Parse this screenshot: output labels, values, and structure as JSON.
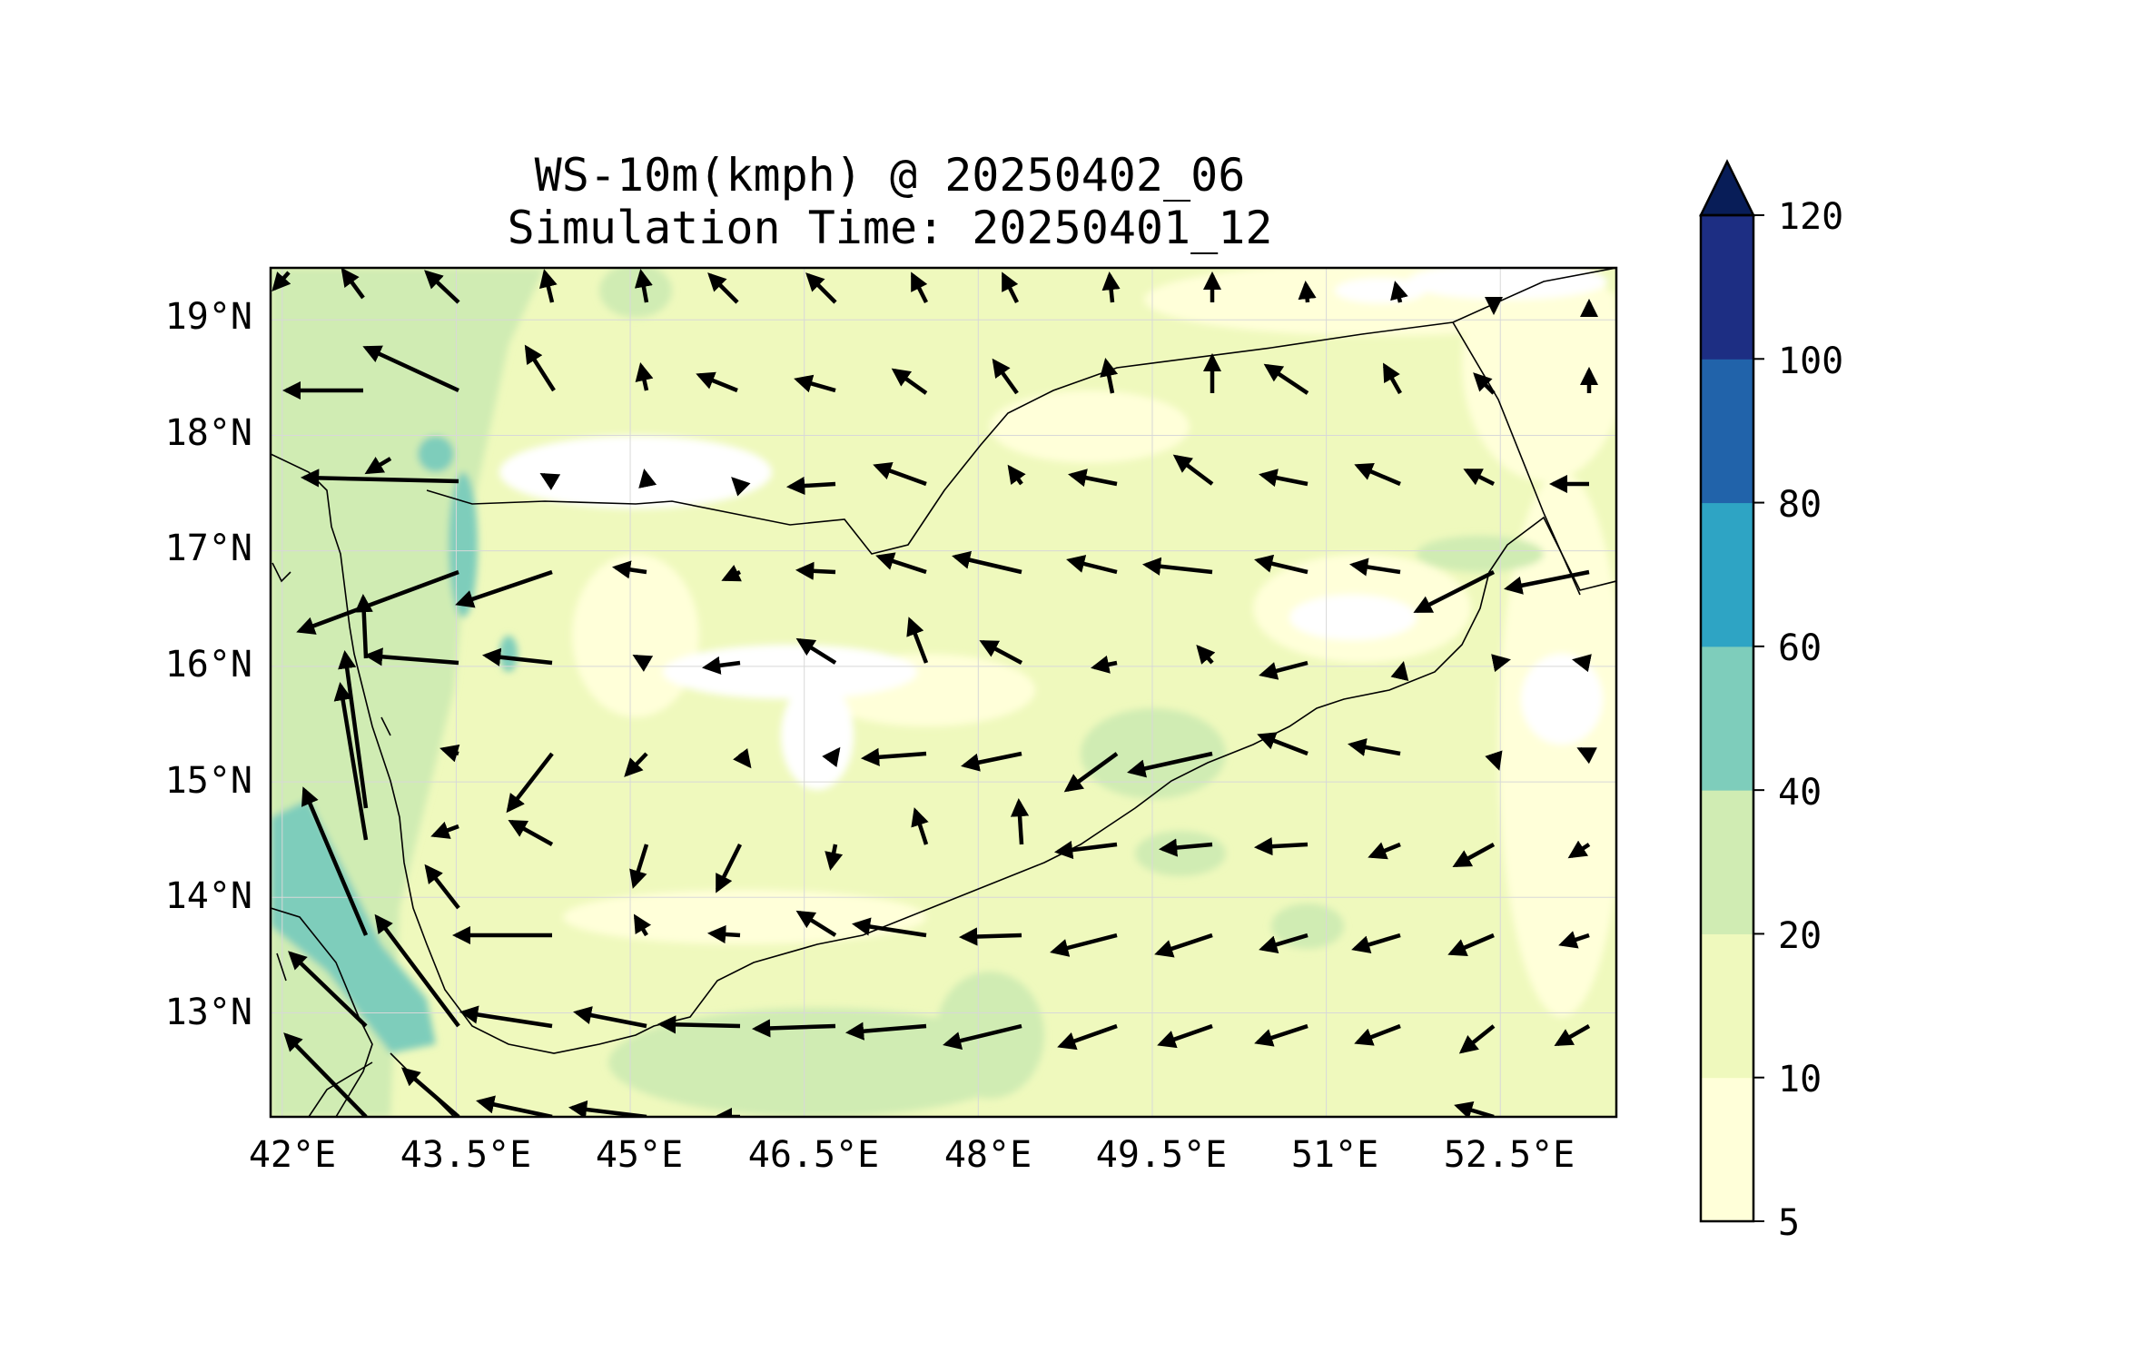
{
  "title": {
    "line1": "WS-10m(kmph) @ 20250402_06",
    "line2": "Simulation Time: 20250401_12"
  },
  "map_data": {
    "type": "filled-contour-with-wind-vectors",
    "region": "Yemen / southern Arabian Peninsula",
    "extent": {
      "lon": [
        41.9,
        53.5
      ],
      "lat": [
        12.1,
        19.45
      ]
    },
    "lon_ticks": [
      42,
      43.5,
      45,
      46.5,
      48,
      49.5,
      51,
      52.5
    ],
    "lon_tick_labels": [
      "42°E",
      "43.5°E",
      "45°E",
      "46.5°E",
      "48°E",
      "49.5°E",
      "51°E",
      "52.5°E"
    ],
    "lat_ticks": [
      13,
      14,
      15,
      16,
      17,
      18,
      19
    ],
    "lat_tick_labels": [
      "13°N",
      "14°N",
      "15°N",
      "16°N",
      "17°N",
      "18°N",
      "19°N"
    ],
    "grid": true,
    "colorbar": {
      "placement": "right",
      "extend": "max",
      "levels": [
        5,
        10,
        20,
        40,
        60,
        80,
        100,
        120
      ],
      "tick_labels": [
        "5",
        "10",
        "20",
        "40",
        "60",
        "80",
        "100",
        "120"
      ],
      "colors": [
        "#ffffd9",
        "#eff9bd",
        "#d0ecb3",
        "#7ecdbb",
        "#2ea4c4",
        "#2163aa",
        "#1d2e83",
        "#081d58"
      ]
    },
    "colors": {
      "background": "#ffffff",
      "coastline": "#000000",
      "arrows": "#000000"
    }
  }
}
